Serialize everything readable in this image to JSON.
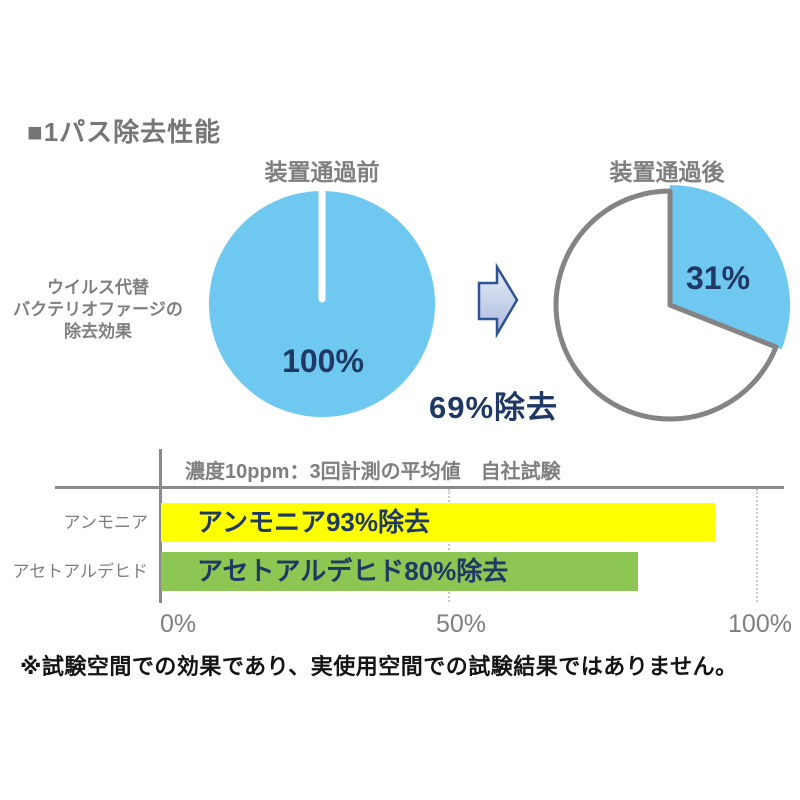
{
  "title": "■1パス除去性能",
  "pies": {
    "caption_lines": [
      "ウイルス代替",
      "バクテリオファージの",
      "除去効果"
    ],
    "before": {
      "label": "装置通過前",
      "value_text": "100%"
    },
    "after": {
      "label": "装置通過後",
      "value_text": "31%"
    },
    "removal_text": "69%除去"
  },
  "bars": {
    "note": "濃度10ppm：3回計測の平均値　自社試験",
    "rows": [
      {
        "category": "アンモニア",
        "bar_text": "アンモニア93%除去",
        "value": 93,
        "color": "#ffff00"
      },
      {
        "category": "アセトアルデヒド",
        "bar_text": "アセトアルデヒド80%除去",
        "value": 80,
        "color": "#8ec653"
      }
    ],
    "ticks": {
      "t0": "0%",
      "t50": "50%",
      "t100": "100%"
    }
  },
  "footnote": "※試験空間での効果であり、実使用空間での試験結果ではありません。",
  "colors": {
    "pie_blue": "#6fc8f0",
    "navy_text": "#1f3864",
    "gray_text": "#7f7f7f",
    "pie_outline_gray": "#848484",
    "arrow_border": "#2e5395",
    "arrow_fill_top": "#e9eef8",
    "arrow_fill_bottom": "#a9badf",
    "bar_yellow": "#ffff00",
    "bar_green": "#8ec653"
  },
  "chart_data": [
    {
      "type": "pie",
      "title": "装置通過前",
      "values": [
        100
      ],
      "data_labels": [
        "100%"
      ],
      "color": "#6fc8f0",
      "note": "full blue circle with white radius marker at 12 o'clock"
    },
    {
      "type": "pie",
      "title": "装置通過後",
      "values": [
        31,
        69
      ],
      "data_labels": [
        "31%",
        "69%除去"
      ],
      "colors": [
        "#6fc8f0",
        "#ffffff"
      ],
      "note": "blue 31% slice starts at 12 o'clock clockwise; remainder white with gray outline"
    },
    {
      "type": "bar",
      "orientation": "horizontal",
      "categories": [
        "アンモニア",
        "アセトアルデヒド"
      ],
      "values": [
        93,
        80
      ],
      "bar_labels": [
        "アンモニア93%除去",
        "アセトアルデヒド80%除去"
      ],
      "colors": [
        "#ffff00",
        "#8ec653"
      ],
      "xlim": [
        0,
        100
      ],
      "xticks": [
        "0%",
        "50%",
        "100%"
      ],
      "grid": "dotted vertical lines at 50% and 100%",
      "subtitle": "濃度10ppm：3回計測の平均値　自社試験",
      "legend": "none"
    }
  ]
}
